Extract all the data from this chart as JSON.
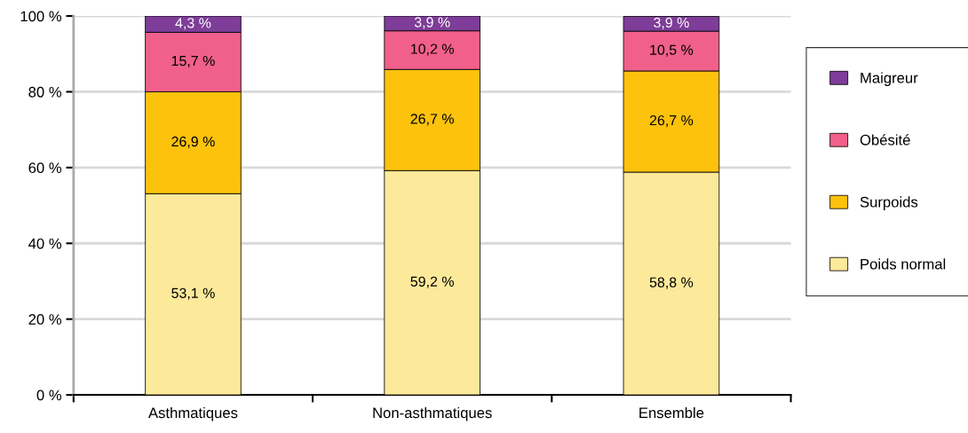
{
  "chart_data": {
    "type": "bar",
    "stacked": true,
    "categories": [
      "Asthmatiques",
      "Non-asthmatiques",
      "Ensemble"
    ],
    "series": [
      {
        "name": "Poids normal",
        "color": "#fde99a",
        "values": [
          53.1,
          59.2,
          58.8
        ],
        "value_labels": [
          "53,1 %",
          "59,2 %",
          "58,8 %"
        ]
      },
      {
        "name": "Surpoids",
        "color": "#fdc20c",
        "values": [
          26.9,
          26.7,
          26.7
        ],
        "value_labels": [
          "26,9 %",
          "26,7 %",
          "26,7 %"
        ]
      },
      {
        "name": "Obésité",
        "color": "#f0608a",
        "values": [
          15.7,
          10.2,
          10.5
        ],
        "value_labels": [
          "15,7 %",
          "10,2 %",
          "10,5 %"
        ]
      },
      {
        "name": "Maigreur",
        "color": "#7e3d98",
        "values": [
          4.3,
          3.9,
          3.9
        ],
        "value_labels": [
          "4,3 %",
          "3,9 %",
          "3,9 %"
        ]
      }
    ],
    "ylim": [
      0,
      100
    ],
    "yticks": [
      {
        "value": 0,
        "label": "0 %"
      },
      {
        "value": 20,
        "label": "20 %"
      },
      {
        "value": 40,
        "label": "40 %"
      },
      {
        "value": 60,
        "label": "60 %"
      },
      {
        "value": 80,
        "label": "80 %"
      },
      {
        "value": 100,
        "label": "100 %"
      }
    ],
    "grid": "y",
    "legend": "right"
  }
}
